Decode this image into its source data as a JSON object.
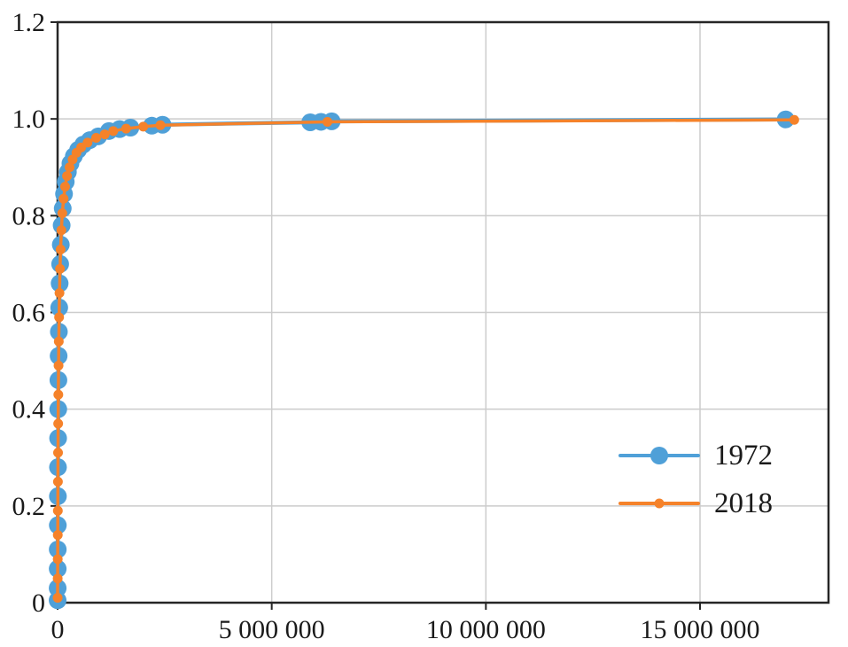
{
  "figure": {
    "background": "#ffffff"
  },
  "colors": {
    "grid": "#cccccc",
    "axis": "#262626",
    "tick_label": "#1a1a1a"
  },
  "chart_data": {
    "type": "line",
    "title": "",
    "xlabel": "",
    "ylabel": "",
    "xlim": [
      0,
      18000000
    ],
    "ylim": [
      0,
      1.2
    ],
    "grid": true,
    "legend_position": "lower right",
    "x_ticks": [
      {
        "value": 0,
        "label": "0"
      },
      {
        "value": 5000000,
        "label": "5 000 000"
      },
      {
        "value": 10000000,
        "label": "10 000 000"
      },
      {
        "value": 15000000,
        "label": "15 000 000"
      }
    ],
    "y_ticks": [
      {
        "value": 0,
        "label": "0"
      },
      {
        "value": 0.2,
        "label": "0.2"
      },
      {
        "value": 0.4,
        "label": "0.4"
      },
      {
        "value": 0.6,
        "label": "0.6"
      },
      {
        "value": 0.8,
        "label": "0.8"
      },
      {
        "value": 1.0,
        "label": "1.0"
      },
      {
        "value": 1.2,
        "label": "1.2"
      }
    ],
    "series": [
      {
        "name": "1972",
        "color": "#4FA0D8",
        "marker_radius": 10,
        "line_width": 4.5,
        "points": [
          [
            800,
            0.005
          ],
          [
            1500,
            0.03
          ],
          [
            2500,
            0.07
          ],
          [
            3500,
            0.11
          ],
          [
            5000,
            0.16
          ],
          [
            7000,
            0.22
          ],
          [
            9000,
            0.28
          ],
          [
            12000,
            0.34
          ],
          [
            15000,
            0.4
          ],
          [
            19000,
            0.46
          ],
          [
            24000,
            0.51
          ],
          [
            30000,
            0.56
          ],
          [
            38000,
            0.61
          ],
          [
            48000,
            0.66
          ],
          [
            60000,
            0.7
          ],
          [
            75000,
            0.74
          ],
          [
            95000,
            0.78
          ],
          [
            120000,
            0.815
          ],
          [
            150000,
            0.845
          ],
          [
            190000,
            0.87
          ],
          [
            240000,
            0.89
          ],
          [
            300000,
            0.908
          ],
          [
            380000,
            0.923
          ],
          [
            480000,
            0.936
          ],
          [
            600000,
            0.947
          ],
          [
            750000,
            0.956
          ],
          [
            950000,
            0.964
          ],
          [
            1200000,
            0.975
          ],
          [
            1450000,
            0.979
          ],
          [
            1700000,
            0.982
          ],
          [
            2200000,
            0.986
          ],
          [
            2450000,
            0.988
          ],
          [
            5900000,
            0.993
          ],
          [
            6150000,
            0.994
          ],
          [
            6400000,
            0.995
          ],
          [
            17000000,
            0.999
          ]
        ]
      },
      {
        "name": "2018",
        "color": "#F5822A",
        "marker_radius": 5.5,
        "line_width": 3.5,
        "points": [
          [
            800,
            0.01
          ],
          [
            2000,
            0.05
          ],
          [
            3000,
            0.09
          ],
          [
            4500,
            0.14
          ],
          [
            6000,
            0.19
          ],
          [
            8000,
            0.25
          ],
          [
            10500,
            0.31
          ],
          [
            13500,
            0.37
          ],
          [
            17000,
            0.43
          ],
          [
            22000,
            0.49
          ],
          [
            28000,
            0.54
          ],
          [
            35000,
            0.59
          ],
          [
            44000,
            0.64
          ],
          [
            56000,
            0.69
          ],
          [
            70000,
            0.73
          ],
          [
            88000,
            0.77
          ],
          [
            110000,
            0.805
          ],
          [
            140000,
            0.835
          ],
          [
            175000,
            0.86
          ],
          [
            220000,
            0.882
          ],
          [
            280000,
            0.9
          ],
          [
            350000,
            0.916
          ],
          [
            440000,
            0.93
          ],
          [
            550000,
            0.941
          ],
          [
            700000,
            0.951
          ],
          [
            900000,
            0.961
          ],
          [
            1100000,
            0.968
          ],
          [
            1300000,
            0.975
          ],
          [
            1600000,
            0.98
          ],
          [
            2000000,
            0.984
          ],
          [
            2400000,
            0.987
          ],
          [
            6300000,
            0.994
          ],
          [
            17200000,
            0.998
          ]
        ]
      }
    ]
  }
}
